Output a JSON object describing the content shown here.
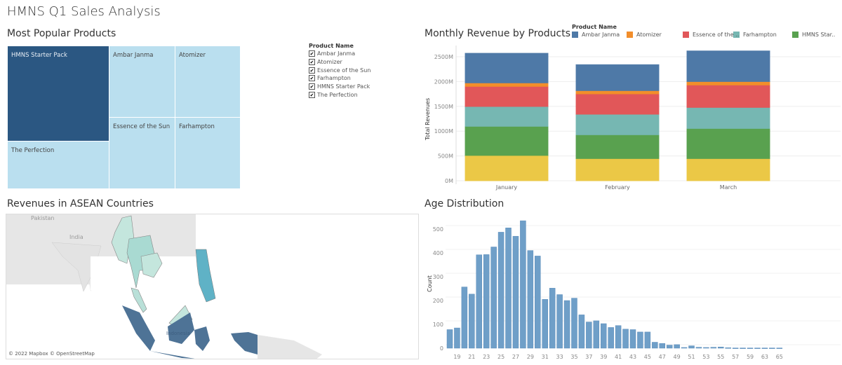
{
  "dashboard": {
    "title": "HMNS Q1 Sales Analysis"
  },
  "treemap": {
    "title": "Most Popular Products",
    "tiles": [
      {
        "label": "HMNS Starter Pack",
        "highlight": true
      },
      {
        "label": "The Perfection",
        "highlight": false
      },
      {
        "label": "Ambar Janma",
        "highlight": false
      },
      {
        "label": "Atomizer",
        "highlight": false
      },
      {
        "label": "Essence of the Sun",
        "highlight": false
      },
      {
        "label": "Farhampton",
        "highlight": false
      }
    ],
    "colors": {
      "highlight": "#2b5782",
      "normal": "#badfef"
    }
  },
  "filter": {
    "title": "Product Name",
    "items": [
      {
        "label": "Ambar Janma",
        "checked": true
      },
      {
        "label": "Atomizer",
        "checked": true
      },
      {
        "label": "Essence of the Sun",
        "checked": true
      },
      {
        "label": "Farhampton",
        "checked": true
      },
      {
        "label": "HMNS Starter Pack",
        "checked": true
      },
      {
        "label": "The Perfection",
        "checked": true
      }
    ]
  },
  "map": {
    "title": "Revenues in ASEAN Countries",
    "labels": {
      "pakistan": "Pakistan",
      "india": "India",
      "indonesia": "Indonesia"
    },
    "attribution": "© 2022 Mapbox © OpenStreetMap",
    "colors": {
      "high": "#4e7396",
      "mid": "#5fb2c6",
      "low": "#b9e0d8",
      "base": "#e6e6e6"
    }
  },
  "chart_data": [
    {
      "type": "bar",
      "stacked": true,
      "title": "Monthly Revenue by Products",
      "legend_title": "Product Name",
      "legend_placement": "top",
      "xlabel": "",
      "ylabel": "Total Revenues",
      "categories": [
        "January",
        "February",
        "March"
      ],
      "ylim": [
        0,
        2700
      ],
      "yticks": [
        "0M",
        "500M",
        "1000M",
        "1500M",
        "2000M",
        "2500M"
      ],
      "ytick_values": [
        0,
        500,
        1000,
        1500,
        2000,
        2500
      ],
      "grid": true,
      "series": [
        {
          "color": "#ebc846",
          "values": [
            510,
            447,
            447
          ]
        },
        {
          "name": "HMNS Star..",
          "color": "#59a14f",
          "values": [
            587,
            480,
            607
          ]
        },
        {
          "name": "Farhampton",
          "color": "#76b7b2",
          "values": [
            400,
            414,
            424
          ]
        },
        {
          "name": "Essence of the ..",
          "color": "#e15759",
          "values": [
            405,
            410,
            452
          ]
        },
        {
          "name": "Atomizer",
          "color": "#f28e2b",
          "values": [
            71,
            66,
            70
          ]
        },
        {
          "name": "Ambar Janma",
          "color": "#4e79a7",
          "values": [
            597,
            523,
            617
          ]
        }
      ]
    },
    {
      "type": "bar",
      "title": "Age Distribution",
      "xlabel": "",
      "ylabel": "Count",
      "ylim": [
        0,
        550
      ],
      "yticks": [
        0,
        100,
        200,
        300,
        400,
        500
      ],
      "grid": true,
      "color": "#6f9fc8",
      "categories": [
        18,
        19,
        20,
        21,
        22,
        23,
        24,
        25,
        26,
        27,
        28,
        29,
        30,
        31,
        32,
        33,
        34,
        35,
        36,
        37,
        38,
        39,
        40,
        41,
        42,
        43,
        44,
        45,
        46,
        47,
        48,
        49,
        50,
        51,
        52,
        53,
        54,
        55,
        56,
        57,
        58,
        59,
        61,
        63,
        64,
        65
      ],
      "tick_labels": [
        "19",
        "21",
        "23",
        "25",
        "27",
        "29",
        "31",
        "33",
        "35",
        "37",
        "39",
        "41",
        "43",
        "45",
        "47",
        "49",
        "51",
        "53",
        "55",
        "57",
        "59",
        "63",
        "65"
      ],
      "values": [
        78,
        85,
        257,
        227,
        392,
        393,
        425,
        487,
        505,
        470,
        535,
        410,
        387,
        205,
        252,
        225,
        200,
        210,
        140,
        110,
        115,
        103,
        87,
        95,
        80,
        78,
        68,
        68,
        25,
        20,
        13,
        15,
        3,
        10,
        4,
        3,
        4,
        5,
        2,
        1,
        1,
        1,
        1,
        1,
        1,
        1
      ]
    }
  ]
}
